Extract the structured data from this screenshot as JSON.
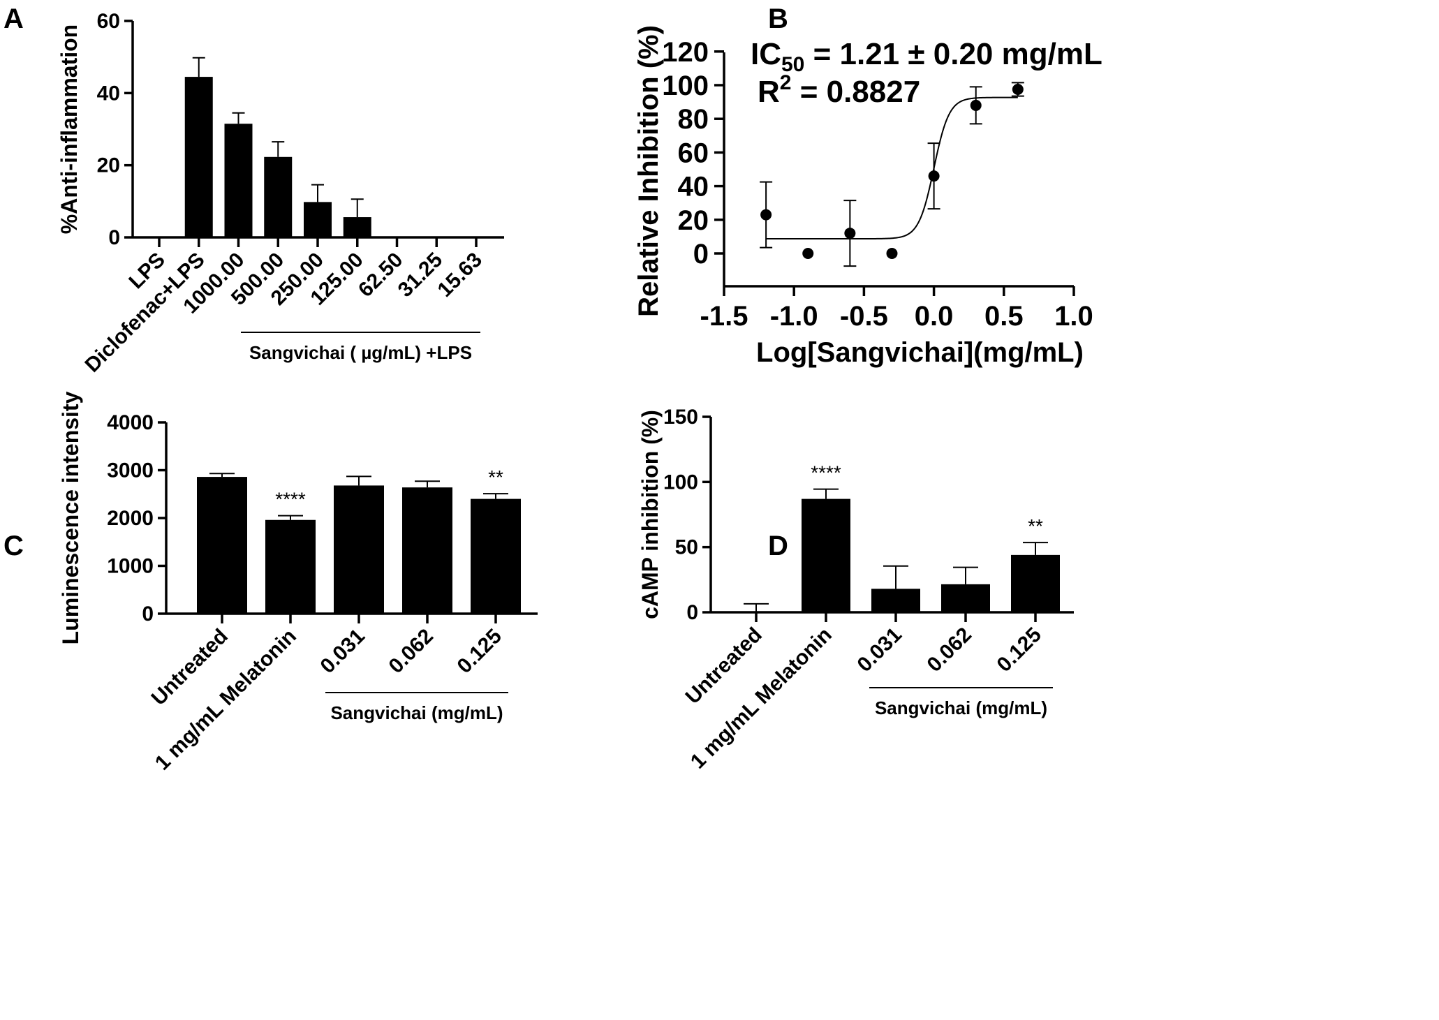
{
  "chart_data": [
    {
      "panel": "A",
      "type": "bar",
      "ylabel": "%Anti-inflammation",
      "ylim": [
        0,
        60
      ],
      "yticks": [
        "0",
        "20",
        "40",
        "60"
      ],
      "categories": [
        "LPS",
        "Diclofenac+LPS",
        "1000.00",
        "500.00",
        "250.00",
        "125.00",
        "62.50",
        "31.25",
        "15.63"
      ],
      "values": [
        0,
        44.5,
        31.5,
        22.3,
        9.8,
        5.6,
        0,
        0,
        0
      ],
      "errors": [
        0,
        5.3,
        3.0,
        4.2,
        4.8,
        5.0,
        0,
        0,
        0
      ],
      "group_label": "Sangvichai ( µg/mL) +LPS"
    },
    {
      "panel": "B",
      "type": "scatter",
      "xlabel": "Log[Sangvichai](mg/mL)",
      "ylabel": "Relative Inhibition (%)",
      "xlim": [
        -1.5,
        1.0
      ],
      "ylim": [
        -20,
        120
      ],
      "xticks": [
        "-1.5",
        "-1.0",
        "-0.5",
        "0.0",
        "0.5",
        "1.0"
      ],
      "yticks": [
        "0",
        "20",
        "40",
        "60",
        "80",
        "100",
        "120"
      ],
      "points": [
        {
          "x": -1.2,
          "y": 23,
          "err": 19.5
        },
        {
          "x": -0.9,
          "y": 0,
          "err": 0
        },
        {
          "x": -0.6,
          "y": 12,
          "err": 19.5
        },
        {
          "x": -0.3,
          "y": 0,
          "err": 0
        },
        {
          "x": 0.0,
          "y": 46,
          "err": 19.5
        },
        {
          "x": 0.3,
          "y": 88,
          "err": 11
        },
        {
          "x": 0.6,
          "y": 97.5,
          "err": 4
        }
      ],
      "fit": {
        "bottom": 8.7,
        "top": 92.7,
        "log_ic50": 0.0,
        "hill_slope": 8
      },
      "annotation_ic50": "IC50 = 1.21 ± 0.20 mg/mL",
      "annotation_r2": "R2 = 0.8827"
    },
    {
      "panel": "C",
      "type": "bar",
      "ylabel": "Luminescence intensity",
      "ylim": [
        0,
        4000
      ],
      "yticks": [
        "0",
        "1000",
        "2000",
        "3000",
        "4000"
      ],
      "categories": [
        "Untreated",
        "1 mg/mL Melatonin",
        "0.031",
        "0.062",
        "0.125"
      ],
      "values": [
        2860,
        1960,
        2680,
        2640,
        2400
      ],
      "errors": [
        70,
        90,
        190,
        130,
        110
      ],
      "significance": [
        "",
        "****",
        "",
        "",
        "**"
      ],
      "group_label": "Sangvichai (mg/mL)"
    },
    {
      "panel": "D",
      "type": "bar",
      "ylabel": "cAMP inhibition (%)",
      "ylim": [
        0,
        150
      ],
      "yticks": [
        "0",
        "50",
        "100",
        "150"
      ],
      "categories": [
        "Untreated",
        "1 mg/mL Melatonin",
        "0.031",
        "0.062",
        "0.125"
      ],
      "values": [
        0,
        87,
        18,
        21.5,
        44
      ],
      "errors": [
        6.5,
        7.5,
        17.5,
        13,
        9.5
      ],
      "significance": [
        "",
        "****",
        "",
        "",
        "**"
      ],
      "group_label": "Sangvichai (mg/mL)"
    }
  ]
}
